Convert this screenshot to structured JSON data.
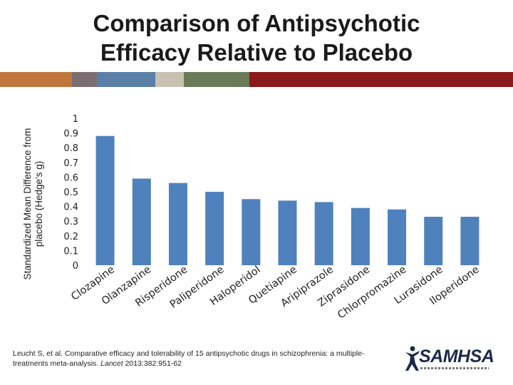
{
  "slide": {
    "title_line1": "Comparison of Antipsychotic",
    "title_line2": "Efficacy Relative to Placebo",
    "citation_before": "Leucht S, et al. Comparative efficacy and tolerability of 15 antipsychotic drugs in schizophrenia: a multiple-treatments meta-analysis. ",
    "citation_journal": "Lancet",
    "citation_after": " 2013:382:951-62",
    "logo_text": "SAMHSA",
    "logo_icon": "person-figure-icon",
    "accent_colors": [
      "#c0763a",
      "#7a6e72",
      "#5b7fa6",
      "#c9c0b4",
      "#6b7a58",
      "#8b1a1a"
    ]
  },
  "chart_data": {
    "type": "bar",
    "ylabel_line1": "Standardized Mean Difference from",
    "ylabel_line2": "placebo (Hedge’s g)",
    "xlabel": "",
    "ylim": [
      0,
      1
    ],
    "yticks": [
      0,
      0.1,
      0.2,
      0.3,
      0.4,
      0.5,
      0.6,
      0.7,
      0.8,
      0.9,
      1
    ],
    "ytick_labels": [
      "0",
      "0.1",
      "0.2",
      "0.3",
      "0.4",
      "0.5",
      "0.6",
      "0.7",
      "0.8",
      "0.9",
      "1"
    ],
    "grid": false,
    "legend": "none",
    "bar_color": "#4f81bd",
    "categories": [
      "Clozapine",
      "Olanzapine",
      "Risperidone",
      "Paliperidone",
      "Haloperidol",
      "Quetiapine",
      "Aripiprazole",
      "Ziprasidone",
      "Chlorpromazine",
      "Lurasidone",
      "Iloperidone"
    ],
    "values": [
      0.88,
      0.59,
      0.56,
      0.5,
      0.45,
      0.44,
      0.43,
      0.39,
      0.38,
      0.33,
      0.33
    ]
  }
}
